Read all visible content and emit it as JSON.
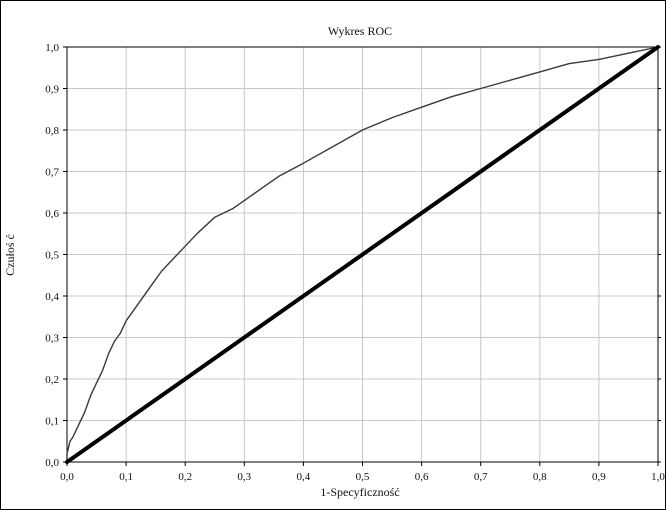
{
  "chart_data": {
    "type": "line",
    "title": "Wykres ROC",
    "xlabel": "1-Specyficzność",
    "ylabel": "Czułoś ć",
    "xlim": [
      0.0,
      1.0
    ],
    "ylim": [
      0.0,
      1.0
    ],
    "grid": true,
    "legend": "none",
    "x_ticks": [
      "0,0",
      "0,1",
      "0,2",
      "0,3",
      "0,4",
      "0,5",
      "0,6",
      "0,7",
      "0,8",
      "0,9",
      "1,0"
    ],
    "y_ticks": [
      "0,0",
      "0,1",
      "0,2",
      "0,3",
      "0,4",
      "0,5",
      "0,6",
      "0,7",
      "0,8",
      "0,9",
      "1,0"
    ],
    "series": [
      {
        "style": "thin",
        "color": "#3a3a3a",
        "x": [
          0.0,
          0.0,
          0.005,
          0.01,
          0.02,
          0.03,
          0.04,
          0.05,
          0.06,
          0.07,
          0.08,
          0.09,
          0.1,
          0.12,
          0.14,
          0.16,
          0.18,
          0.2,
          0.22,
          0.25,
          0.28,
          0.3,
          0.33,
          0.36,
          0.4,
          0.45,
          0.5,
          0.55,
          0.6,
          0.65,
          0.7,
          0.75,
          0.8,
          0.85,
          0.9,
          0.95,
          1.0
        ],
        "y": [
          0.0,
          0.02,
          0.05,
          0.06,
          0.09,
          0.12,
          0.16,
          0.19,
          0.22,
          0.26,
          0.29,
          0.31,
          0.34,
          0.38,
          0.42,
          0.46,
          0.49,
          0.52,
          0.55,
          0.59,
          0.61,
          0.63,
          0.66,
          0.69,
          0.72,
          0.76,
          0.8,
          0.83,
          0.855,
          0.88,
          0.9,
          0.92,
          0.94,
          0.96,
          0.97,
          0.985,
          1.0
        ]
      },
      {
        "style": "thick",
        "color": "#000000",
        "x": [
          0.0,
          1.0
        ],
        "y": [
          0.0,
          1.0
        ]
      }
    ]
  }
}
